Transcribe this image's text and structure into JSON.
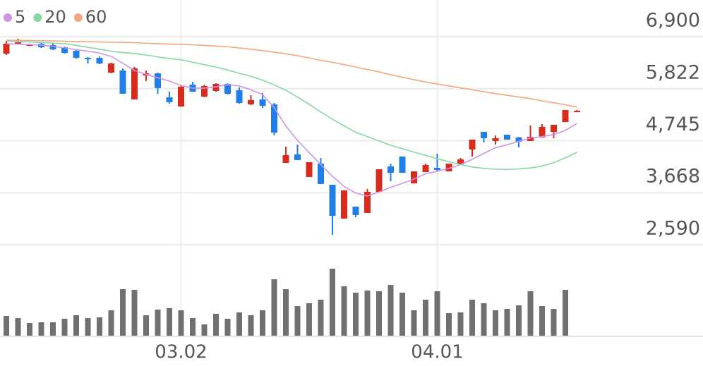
{
  "chart_data": {
    "type": "candlestick",
    "categories": [
      null,
      null,
      null,
      null,
      null,
      null,
      null,
      null,
      null,
      null,
      null,
      null,
      null,
      null,
      null,
      "03.02",
      null,
      null,
      null,
      null,
      null,
      null,
      null,
      null,
      null,
      null,
      null,
      null,
      null,
      null,
      null,
      null,
      null,
      null,
      null,
      null,
      null,
      "04.01",
      null,
      null,
      null,
      null,
      null,
      null,
      null,
      null,
      null,
      null,
      null,
      null
    ],
    "open": [
      6549,
      6770,
      6725,
      6754,
      6725,
      6681,
      6608,
      6462,
      6462,
      6155,
      6199,
      5600,
      6096,
      6140,
      5644,
      5454,
      5907,
      5658,
      5775,
      5921,
      5790,
      5498,
      5600,
      5497,
      4285,
      4460,
      3993,
      4270,
      3832,
      3131,
      3379,
      3248,
      3686,
      4212,
      4416,
      3861,
      4095,
      4183,
      4109,
      4256,
      4562,
      4928,
      4738,
      4869,
      4811,
      4738,
      4811,
      4928,
      5132,
      5360
    ],
    "high": [
      6812,
      6856,
      6754,
      6783,
      6754,
      6696,
      6622,
      6476,
      6491,
      6360,
      6242,
      6272,
      6199,
      6155,
      5760,
      5892,
      5965,
      5907,
      5935,
      5935,
      5848,
      5687,
      5731,
      5527,
      4621,
      4665,
      4300,
      4387,
      3832,
      3715,
      3379,
      3744,
      4153,
      4270,
      4416,
      4109,
      4270,
      4475,
      4270,
      4387,
      4767,
      4928,
      4855,
      4869,
      4825,
      5059,
      5088,
      5074,
      5380,
      5380
    ],
    "low": [
      6520,
      6754,
      6710,
      6666,
      6622,
      6550,
      6447,
      6345,
      6330,
      6140,
      5717,
      5600,
      5980,
      5717,
      5513,
      5454,
      5760,
      5644,
      5760,
      5702,
      5513,
      5484,
      5425,
      4855,
      4285,
      4343,
      3993,
      3847,
      2795,
      3131,
      3160,
      3248,
      3686,
      3905,
      4080,
      3861,
      4095,
      4109,
      4109,
      4256,
      4416,
      4709,
      4665,
      4767,
      4606,
      4738,
      4811,
      4796,
      5132,
      5350
    ],
    "close": [
      6754,
      6783,
      6739,
      6681,
      6637,
      6564,
      6462,
      6432,
      6345,
      6345,
      5717,
      6243,
      6140,
      5834,
      5541,
      5863,
      5760,
      5877,
      5921,
      5717,
      5527,
      5585,
      5469,
      4913,
      4446,
      4343,
      4300,
      3847,
      3189,
      3715,
      3204,
      3686,
      4153,
      4080,
      4080,
      4109,
      4241,
      4139,
      4270,
      4358,
      4767,
      4796,
      4796,
      4767,
      4723,
      4825,
      5030,
      5074,
      5380,
      5365
    ],
    "up_color": "#d92b1c",
    "down_color": "#1f7ee8",
    "series": [
      {
        "name": "5",
        "color": "#cf93e8",
        "values": [
          6754,
          6745,
          6735,
          6725,
          6700,
          6670,
          6630,
          6600,
          6560,
          6491,
          6350,
          6199,
          6120,
          6050,
          5980,
          5890,
          5834,
          5834,
          5860,
          5907,
          5880,
          5800,
          5700,
          5430,
          5050,
          4750,
          4500,
          4250,
          4007,
          3800,
          3660,
          3600,
          3680,
          3780,
          3860,
          3950,
          4060,
          4110,
          4170,
          4250,
          4360,
          4480,
          4600,
          4660,
          4730,
          4800,
          4830,
          4870,
          4960,
          5103
        ]
      },
      {
        "name": "20",
        "color": "#86d7a4",
        "values": [
          6812,
          6800,
          6790,
          6778,
          6766,
          6754,
          6720,
          6680,
          6640,
          6600,
          6570,
          6550,
          6520,
          6480,
          6450,
          6420,
          6370,
          6320,
          6270,
          6210,
          6140,
          6080,
          6000,
          5900,
          5790,
          5650,
          5500,
          5340,
          5190,
          5050,
          4920,
          4830,
          4740,
          4650,
          4580,
          4510,
          4440,
          4370,
          4310,
          4250,
          4200,
          4170,
          4155,
          4150,
          4160,
          4180,
          4220,
          4290,
          4390,
          4504
        ]
      },
      {
        "name": "60",
        "color": "#f2a681",
        "values": [
          6827,
          6823,
          6820,
          6816,
          6812,
          6805,
          6798,
          6795,
          6790,
          6785,
          6780,
          6775,
          6765,
          6755,
          6745,
          6739,
          6730,
          6720,
          6705,
          6690,
          6665,
          6640,
          6610,
          6580,
          6545,
          6505,
          6460,
          6410,
          6370,
          6320,
          6270,
          6220,
          6170,
          6110,
          6060,
          6010,
          5960,
          5920,
          5880,
          5840,
          5800,
          5760,
          5720,
          5685,
          5650,
          5615,
          5570,
          5530,
          5490,
          5440
        ]
      }
    ],
    "ylim": [
      2590,
      6900
    ],
    "yticks": [
      {
        "value": 2590,
        "label": "2,590"
      },
      {
        "value": 3668,
        "label": "3,668"
      },
      {
        "value": 4745,
        "label": "4,745"
      },
      {
        "value": 5822,
        "label": "5,822"
      },
      {
        "value": 6900,
        "label": "6,900"
      }
    ],
    "grid": true,
    "volume": {
      "color": "#707070",
      "ylim": [
        0,
        100
      ],
      "values": [
        28,
        25,
        18,
        19,
        19,
        24,
        29,
        25,
        26,
        36,
        66,
        65,
        29,
        37,
        39,
        36,
        25,
        16,
        31,
        24,
        33,
        29,
        36,
        80,
        66,
        42,
        46,
        51,
        95,
        70,
        61,
        64,
        63,
        72,
        61,
        36,
        51,
        63,
        32,
        33,
        51,
        46,
        36,
        38,
        43,
        63,
        42,
        38,
        65,
        null
      ]
    }
  }
}
